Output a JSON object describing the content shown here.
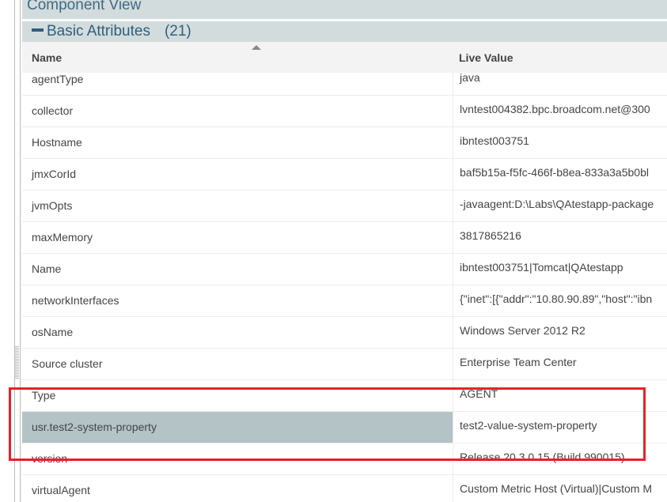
{
  "panel_title": "Component View",
  "section": {
    "label": "Basic Attributes",
    "count": "(21)",
    "icon": "minus-collapse-icon"
  },
  "columns": {
    "name": "Name",
    "value": "Live Value",
    "sort": "ascending"
  },
  "rows": [
    {
      "name": "agentType",
      "value": "java"
    },
    {
      "name": "collector",
      "value": "lvntest004382.bpc.broadcom.net@300"
    },
    {
      "name": "Hostname",
      "value": "ibntest003751"
    },
    {
      "name": "jmxCorId",
      "value": "baf5b15a-f5fc-466f-b8ea-833a3a5b0bl"
    },
    {
      "name": "jvmOpts",
      "value": "-javaagent:D:\\Labs\\QAtestapp-package"
    },
    {
      "name": "maxMemory",
      "value": "3817865216"
    },
    {
      "name": "Name",
      "value": "ibntest003751|Tomcat|QAtestapp"
    },
    {
      "name": "networkInterfaces",
      "value": "{\"inet\":[{\"addr\":\"10.80.90.89\",\"host\":\"ibn"
    },
    {
      "name": "osName",
      "value": "Windows Server 2012 R2"
    },
    {
      "name": "Source cluster",
      "value": "Enterprise Team Center"
    },
    {
      "name": "Type",
      "value": "AGENT"
    },
    {
      "name": "usr.test2-system-property",
      "value": "test2-value-system-property",
      "selected": true
    },
    {
      "name": "version",
      "value": "Release 20.3.0.15 (Build 990015)"
    },
    {
      "name": "virtualAgent",
      "value": "Custom Metric Host (Virtual)|Custom M"
    }
  ],
  "highlight_color": "#e8202a"
}
